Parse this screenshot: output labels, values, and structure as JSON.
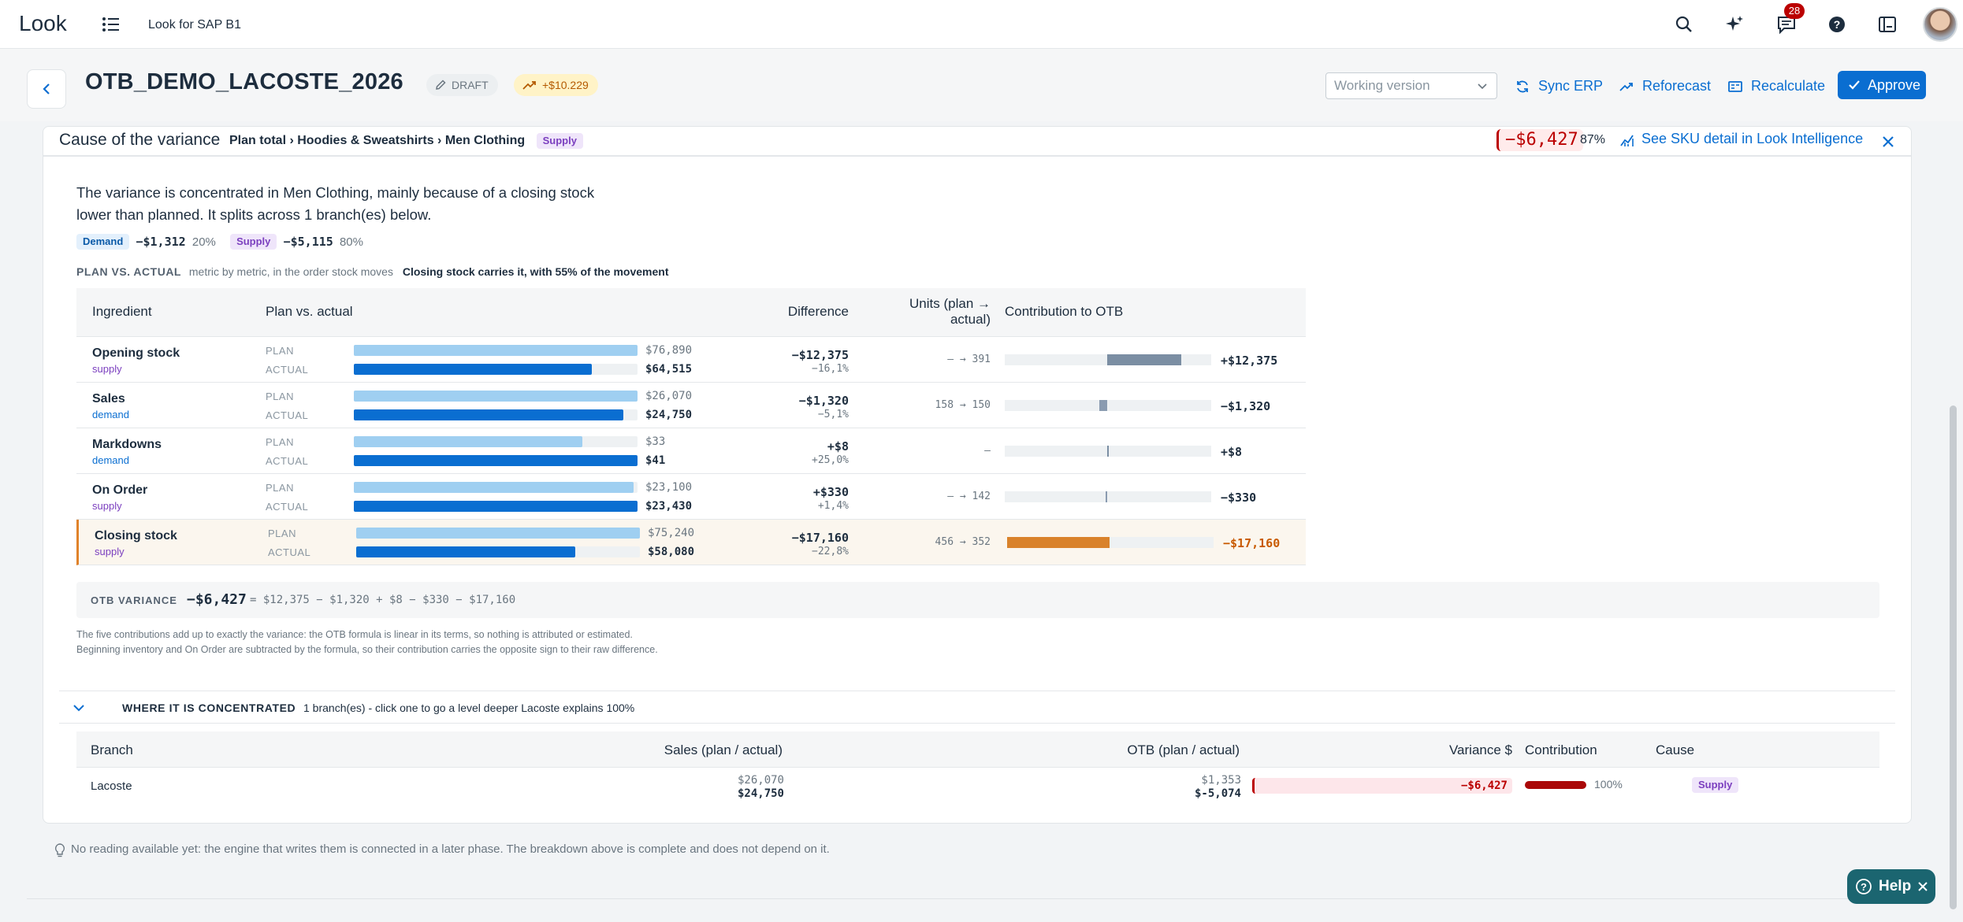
{
  "shell": {
    "logo": "Look",
    "product": "Look for SAP B1",
    "notifications_count": "28",
    "icons": [
      "menu-icon",
      "search-icon",
      "sparkle-icon",
      "chat-icon",
      "help-icon",
      "layout-icon"
    ]
  },
  "header": {
    "title": "OTB_DEMO_LACOSTE_2026",
    "draft_label": "DRAFT",
    "delta_label": "+$10.229",
    "version_placeholder": "Working version",
    "sync_label": "Sync ERP",
    "reforecast_label": "Reforecast",
    "recalculate_label": "Recalculate",
    "approve_label": "Approve"
  },
  "variance_card": {
    "title": "Cause of the variance",
    "breadcrumb": "Plan total › Hoodies & Sweatshirts › Men Clothing",
    "tag": "Supply",
    "variance": "−$6,427",
    "variance_pct": "87%",
    "intelligence_link": "See SKU detail in Look Intelligence",
    "explanation": "The variance is concentrated in Men Clothing, mainly because of a closing stock lower than planned. It splits across 1 branch(es) below.",
    "demand_chip": "Demand",
    "demand_value": "−$1,312",
    "demand_pct": "20%",
    "supply_chip": "Supply",
    "supply_value": "−$5,115",
    "supply_pct": "80%",
    "pva_title": "PLAN VS. ACTUAL",
    "pva_sub": "metric by metric, in the order stock moves",
    "pva_strong": "Closing stock carries it, with 55% of the movement"
  },
  "ingredients_table": {
    "headers": {
      "ingredient": "Ingredient",
      "plan_vs_actual": "Plan vs. actual",
      "difference": "Difference",
      "units": "Units (plan → actual)",
      "contribution": "Contribution to OTB"
    },
    "plan_label": "PLAN",
    "actual_label": "ACTUAL",
    "rows": [
      {
        "name": "Opening stock",
        "type": "supply",
        "plan": "$76,890",
        "actual": "$64,515",
        "plan_frac": 1.0,
        "actual_frac": 0.839,
        "diff": "−$12,375",
        "diff_pct": "−16,1%",
        "units": "— → 391",
        "contrib": "+$12,375",
        "contrib_value": 12375
      },
      {
        "name": "Sales",
        "type": "demand",
        "plan": "$26,070",
        "actual": "$24,750",
        "plan_frac": 1.0,
        "actual_frac": 0.949,
        "diff": "−$1,320",
        "diff_pct": "−5,1%",
        "units": "158 → 150",
        "contrib": "−$1,320",
        "contrib_value": -1320
      },
      {
        "name": "Markdowns",
        "type": "demand",
        "plan": "$33",
        "actual": "$41",
        "plan_frac": 0.805,
        "actual_frac": 1.0,
        "diff": "+$8",
        "diff_pct": "+25,0%",
        "units": "—",
        "contrib": "+$8",
        "contrib_value": 8
      },
      {
        "name": "On Order",
        "type": "supply",
        "plan": "$23,100",
        "actual": "$23,430",
        "plan_frac": 0.986,
        "actual_frac": 1.0,
        "diff": "+$330",
        "diff_pct": "+1,4%",
        "units": "— → 142",
        "contrib": "−$330",
        "contrib_value": -330
      },
      {
        "name": "Closing stock",
        "type": "supply",
        "plan": "$75,240",
        "actual": "$58,080",
        "plan_frac": 1.0,
        "actual_frac": 0.772,
        "diff": "−$17,160",
        "diff_pct": "−22,8%",
        "units": "456 → 352",
        "contrib": "−$17,160",
        "contrib_value": -17160
      }
    ]
  },
  "otb_variance": {
    "label": "OTB VARIANCE",
    "value": "−$6,427",
    "equation": "= $12,375 − $1,320 + $8 − $330 − $17,160"
  },
  "footnote": "The five contributions add up to exactly the variance: the OTB formula is linear in its terms, so nothing is attributed or estimated. Beginning inventory and On Order are subtracted by the formula, so their contribution carries the opposite sign to their raw difference.",
  "concentration": {
    "title": "WHERE IT IS CONCENTRATED",
    "note": "1 branch(es) - click one to go a level deeper   Lacoste explains 100%"
  },
  "branch_table": {
    "headers": {
      "branch": "Branch",
      "sales": "Sales (plan / actual)",
      "otb": "OTB (plan / actual)",
      "variance": "Variance $",
      "contribution": "Contribution",
      "cause": "Cause"
    },
    "rows": [
      {
        "name": "Lacoste",
        "sales_plan": "$26,070",
        "sales_actual": "$24,750",
        "otb_plan": "$1,353",
        "otb_actual": "$-5,074",
        "variance": "−$6,427",
        "contribution": "100%",
        "contribution_frac": 1.0,
        "cause": "Supply"
      }
    ]
  },
  "reading_note": "No reading available yet: the engine that writes them is connected in a later phase. The breakdown above is complete and does not depend on it.",
  "help_label": "Help",
  "colors": {
    "accent": "#0a6ed1",
    "negative": "#bb0000",
    "highlight": "#e0822a",
    "supply": "#7b3fbf"
  }
}
